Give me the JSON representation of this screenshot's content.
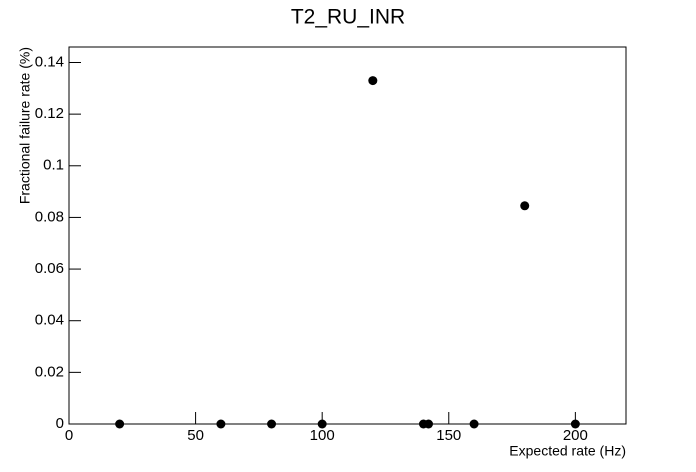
{
  "chart_data": {
    "type": "scatter",
    "title": "T2_RU_INR",
    "x_label": "Expected rate (Hz)",
    "y_label": "Fractional failure rate (%)",
    "x": [
      20,
      60,
      80,
      100,
      120,
      140,
      142,
      160,
      180,
      200
    ],
    "values": [
      0,
      0,
      0,
      0,
      0.133,
      0,
      0,
      0,
      0.0845,
      0
    ],
    "color": "#000000",
    "xlim": [
      0,
      220
    ],
    "xticks": [
      0,
      50,
      100,
      150,
      200
    ],
    "ylim": [
      0,
      0.146
    ],
    "yticks": [
      0,
      0.02,
      0.04,
      0.06,
      0.08,
      0.1,
      0.12,
      0.14
    ]
  }
}
